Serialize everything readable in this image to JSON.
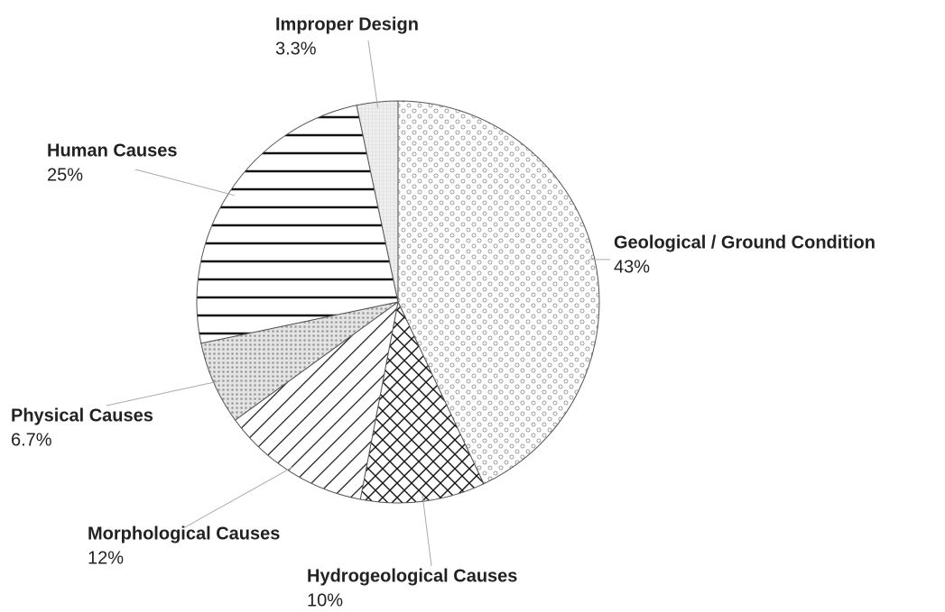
{
  "chart_data": {
    "type": "pie",
    "categories": [
      "Geological / Ground Condition",
      "Hydrogeological Causes",
      "Morphological Causes",
      "Physical Causes",
      "Human Causes",
      "Improper Design"
    ],
    "values": [
      43,
      10,
      12,
      6.7,
      25,
      3.3
    ],
    "value_labels": [
      "43%",
      "10%",
      "12%",
      "6.7%",
      "25%",
      "3.3%"
    ]
  }
}
